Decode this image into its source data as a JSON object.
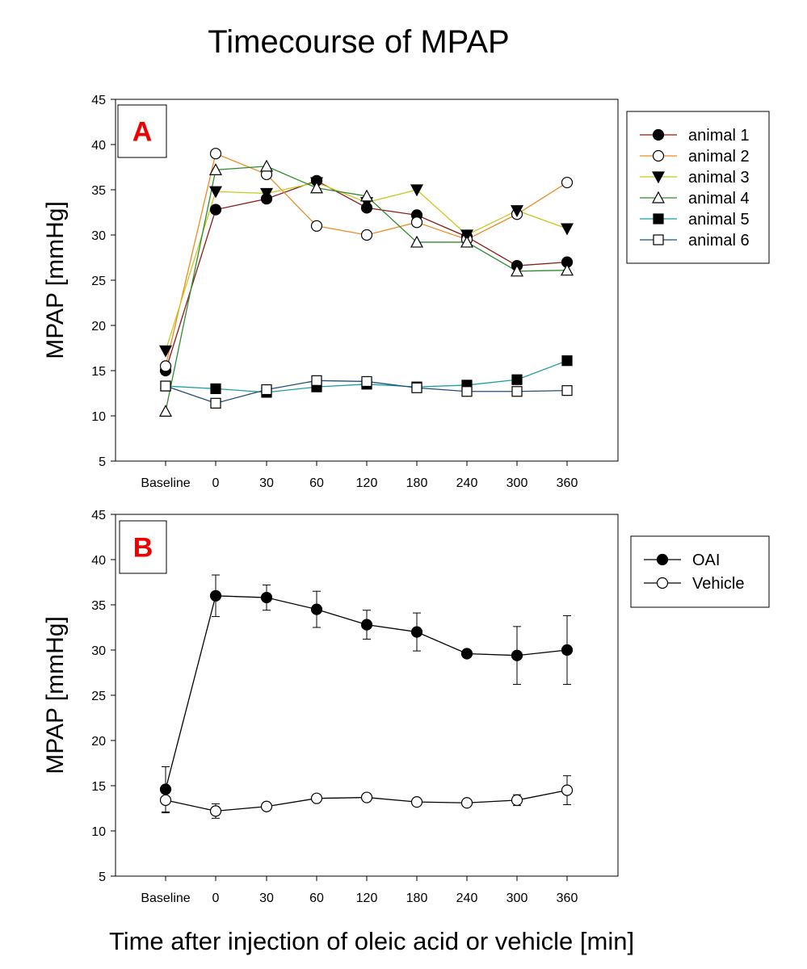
{
  "title": "Timecourse of MPAP",
  "x_axis_title": "Time after injection of oleic acid or vehicle [min]",
  "chart_data": [
    {
      "type": "line",
      "panel_label": "A",
      "ylabel": "MPAP [mmHg]",
      "ylim": [
        5,
        45
      ],
      "yticks": [
        5,
        10,
        15,
        20,
        25,
        30,
        35,
        40,
        45
      ],
      "categories": [
        "Baseline",
        "0",
        "30",
        "60",
        "120",
        "180",
        "240",
        "300",
        "360"
      ],
      "legend_position": "right",
      "series": [
        {
          "name": "animal 1",
          "color": "#8b1a1a",
          "marker": "circle-filled",
          "values": [
            15.0,
            32.8,
            34.0,
            36.0,
            33.0,
            32.2,
            29.8,
            26.6,
            27.0
          ]
        },
        {
          "name": "animal 2",
          "color": "#f08a24",
          "marker": "circle-open",
          "values": [
            15.5,
            39.0,
            36.7,
            31.0,
            30.0,
            31.4,
            29.5,
            32.3,
            35.8
          ]
        },
        {
          "name": "animal 3",
          "color": "#c8c81e",
          "marker": "triangle-down-filled",
          "values": [
            17.2,
            34.8,
            34.6,
            35.8,
            33.6,
            35.0,
            30.0,
            32.7,
            30.7
          ]
        },
        {
          "name": "animal 4",
          "color": "#2e8b2e",
          "marker": "triangle-up-open",
          "values": [
            10.5,
            37.2,
            37.6,
            35.2,
            34.3,
            29.2,
            29.2,
            26.0,
            26.1
          ]
        },
        {
          "name": "animal 5",
          "color": "#1b9e9e",
          "marker": "square-filled",
          "values": [
            13.3,
            13.0,
            12.6,
            13.2,
            13.5,
            13.2,
            13.4,
            14.0,
            16.1
          ]
        },
        {
          "name": "animal 6",
          "color": "#1f4e79",
          "marker": "square-open",
          "values": [
            13.3,
            11.4,
            12.9,
            13.9,
            13.8,
            13.1,
            12.7,
            12.7,
            12.8
          ]
        }
      ]
    },
    {
      "type": "line",
      "panel_label": "B",
      "ylabel": "MPAP [mmHg]",
      "ylim": [
        5,
        45
      ],
      "yticks": [
        5,
        10,
        15,
        20,
        25,
        30,
        35,
        40,
        45
      ],
      "categories": [
        "Baseline",
        "0",
        "30",
        "60",
        "120",
        "180",
        "240",
        "300",
        "360"
      ],
      "legend_position": "right",
      "series": [
        {
          "name": "OAI",
          "color": "#000000",
          "marker": "circle-filled",
          "values": [
            14.6,
            36.0,
            35.8,
            34.5,
            32.8,
            32.0,
            29.6,
            29.4,
            30.0
          ],
          "errors": [
            2.5,
            2.3,
            1.4,
            2.0,
            1.6,
            2.1,
            0.3,
            3.2,
            3.8
          ]
        },
        {
          "name": "Vehicle",
          "color": "#000000",
          "marker": "circle-open",
          "values": [
            13.4,
            12.2,
            12.7,
            13.6,
            13.7,
            13.2,
            13.1,
            13.4,
            14.5
          ],
          "errors": [
            1.4,
            0.8,
            0.0,
            0.0,
            0.0,
            0.0,
            0.0,
            0.6,
            1.6
          ]
        }
      ]
    }
  ]
}
